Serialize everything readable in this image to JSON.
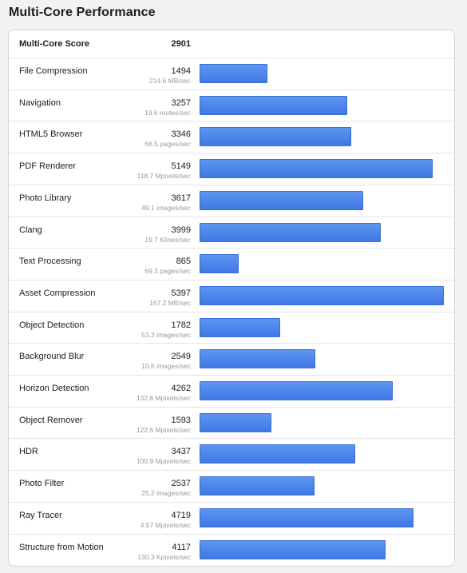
{
  "page": {
    "title": "Multi-Core Performance"
  },
  "summary": {
    "label": "Multi-Core Score",
    "score": "2901"
  },
  "colors": {
    "bar": "#4a82ea",
    "rate_text": "#9a9aa0",
    "background": "#f2f2f4"
  },
  "chart_data": {
    "type": "bar",
    "orientation": "horizontal",
    "title": "Multi-Core Performance",
    "xlim": [
      0,
      5397
    ],
    "categories": [
      "File Compression",
      "Navigation",
      "HTML5 Browser",
      "PDF Renderer",
      "Photo Library",
      "Clang",
      "Text Processing",
      "Asset Compression",
      "Object Detection",
      "Background Blur",
      "Horizon Detection",
      "Object Remover",
      "HDR",
      "Photo Filter",
      "Ray Tracer",
      "Structure from Motion"
    ],
    "values": [
      1494,
      3257,
      3346,
      5149,
      3617,
      3999,
      865,
      5397,
      1782,
      2549,
      4262,
      1593,
      3437,
      2537,
      4719,
      4117
    ],
    "rates": [
      "214.6 MB/sec",
      "19.6 routes/sec",
      "68.5 pages/sec",
      "118.7 Mpixels/sec",
      "49.1 images/sec",
      "19.7 Klines/sec",
      "69.3 pages/sec",
      "167.2 MB/sec",
      "53.3 images/sec",
      "10.6 images/sec",
      "132.6 Mpixels/sec",
      "122.5 Mpixels/sec",
      "100.9 Mpixels/sec",
      "25.2 images/sec",
      "4.57 Mpixels/sec",
      "130.3 Kpixels/sec"
    ]
  }
}
